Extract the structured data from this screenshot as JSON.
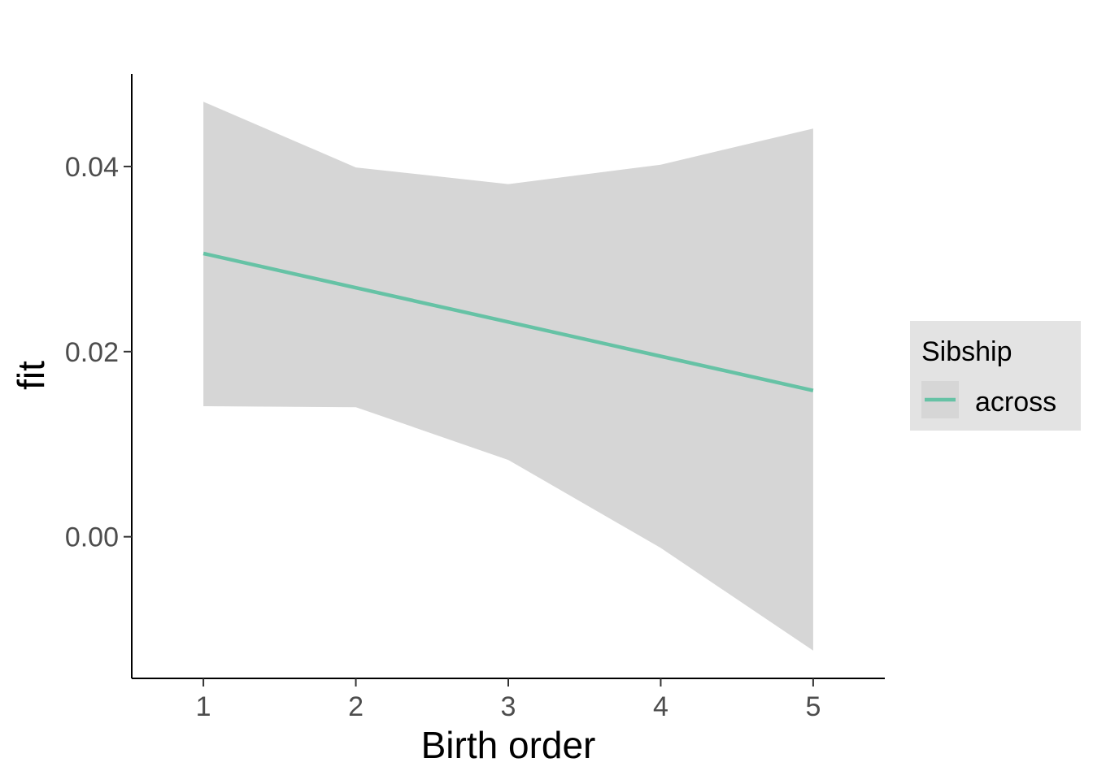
{
  "chart_data": {
    "type": "line",
    "title": "",
    "xlabel": "Birth order",
    "ylabel": "fit",
    "xlim": [
      0.53,
      5.47
    ],
    "ylim": [
      -0.0153,
      0.05
    ],
    "x_ticks": [
      1,
      2,
      3,
      4,
      5
    ],
    "x_tick_labels": [
      "1",
      "2",
      "3",
      "4",
      "5"
    ],
    "y_ticks": [
      0.0,
      0.02,
      0.04
    ],
    "y_tick_labels": [
      "0.00",
      "0.02",
      "0.04"
    ],
    "grid": false,
    "legend": {
      "title": "Sibship",
      "placement": "right",
      "entries": [
        "across"
      ]
    },
    "series": [
      {
        "name": "across",
        "color": "#66c2a5",
        "band_color": "#d6d6d6",
        "x": [
          1,
          2,
          3,
          4,
          5
        ],
        "y": [
          0.0306,
          0.0269,
          0.0232,
          0.0195,
          0.0158
        ],
        "lower": [
          0.0141,
          0.014,
          0.0083,
          -0.0012,
          -0.0123
        ],
        "upper": [
          0.047,
          0.0399,
          0.0381,
          0.0402,
          0.0441
        ]
      }
    ]
  }
}
